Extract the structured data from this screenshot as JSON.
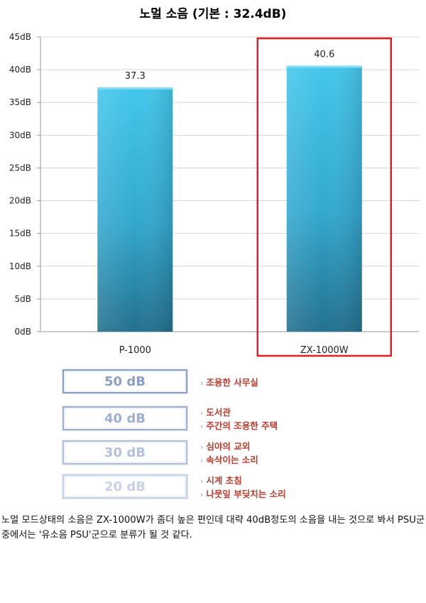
{
  "chart_data": {
    "type": "bar",
    "title": "노멀 소음 (기본 : 32.4dB)",
    "categories": [
      "P-1000",
      "ZX-1000W"
    ],
    "values": [
      37.3,
      40.6
    ],
    "value_labels": [
      "37.3",
      "40.6"
    ],
    "ylim": [
      0,
      45
    ],
    "yticks": [
      "0dB",
      "5dB",
      "10dB",
      "15dB",
      "20dB",
      "25dB",
      "30dB",
      "35dB",
      "40dB",
      "45dB"
    ],
    "xlabel": "",
    "ylabel": "",
    "grid": true,
    "highlighted_category": "ZX-1000W",
    "bar_color": "#3cbfe6",
    "highlight_box_color": "#e02020"
  },
  "legend": {
    "items": [
      {
        "level": "50 dB",
        "lines": [
          "조용한 사무실"
        ],
        "color": "#8aa0c8"
      },
      {
        "level": "40 dB",
        "lines": [
          "도서관",
          "주간의 조용한 주택"
        ],
        "color": "#9cb0d3"
      },
      {
        "level": "30 dB",
        "lines": [
          "심야의 교외",
          "속삭이는 소리"
        ],
        "color": "#b0c1de"
      },
      {
        "level": "20 dB",
        "lines": [
          "시계 초침",
          "나뭇잎 부딪치는 소리"
        ],
        "color": "#c4d2e8"
      }
    ]
  },
  "paragraph": {
    "text": "노멀 모드상태의 소음은 ZX-1000W가 좀더 높은 편인데 대략 40dB정도의 소음을 내는 것으로 봐서 PSU군 중에서는 '유소음 PSU'군으로 분류가 될 것 같다."
  }
}
